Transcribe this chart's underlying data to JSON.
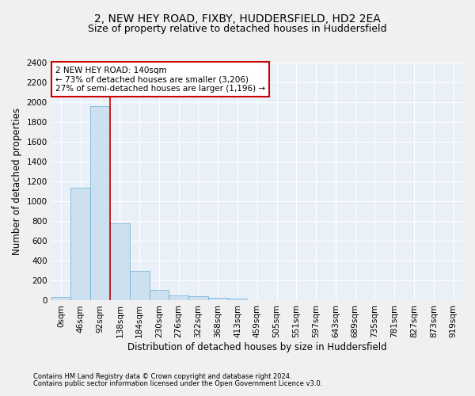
{
  "title": "2, NEW HEY ROAD, FIXBY, HUDDERSFIELD, HD2 2EA",
  "subtitle": "Size of property relative to detached houses in Huddersfield",
  "xlabel": "Distribution of detached houses by size in Huddersfield",
  "ylabel": "Number of detached properties",
  "footnote1": "Contains HM Land Registry data © Crown copyright and database right 2024.",
  "footnote2": "Contains public sector information licensed under the Open Government Licence v3.0.",
  "bar_labels": [
    "0sqm",
    "46sqm",
    "92sqm",
    "138sqm",
    "184sqm",
    "230sqm",
    "276sqm",
    "322sqm",
    "368sqm",
    "413sqm",
    "459sqm",
    "505sqm",
    "551sqm",
    "597sqm",
    "643sqm",
    "689sqm",
    "735sqm",
    "781sqm",
    "827sqm",
    "873sqm",
    "919sqm"
  ],
  "bar_values": [
    35,
    1135,
    1960,
    775,
    300,
    105,
    50,
    40,
    30,
    20,
    0,
    0,
    0,
    0,
    0,
    0,
    0,
    0,
    0,
    0,
    0
  ],
  "bar_color": "#cce0f0",
  "bar_edge_color": "#6aaed6",
  "ylim": [
    0,
    2400
  ],
  "yticks": [
    0,
    200,
    400,
    600,
    800,
    1000,
    1200,
    1400,
    1600,
    1800,
    2000,
    2200,
    2400
  ],
  "property_line_x": 3,
  "property_label": "2 NEW HEY ROAD: 140sqm",
  "annotation_line1": "← 73% of detached houses are smaller (3,206)",
  "annotation_line2": "27% of semi-detached houses are larger (1,196) →",
  "annotation_box_color": "#ffffff",
  "annotation_box_edge": "#cc0000",
  "line_color": "#cc0000",
  "bg_color": "#eaf0f8",
  "grid_color": "#ffffff",
  "fig_bg_color": "#f0f0f0",
  "title_fontsize": 10,
  "subtitle_fontsize": 9,
  "axis_label_fontsize": 8.5,
  "tick_fontsize": 7.5,
  "annotation_fontsize": 7.5,
  "footnote_fontsize": 6
}
